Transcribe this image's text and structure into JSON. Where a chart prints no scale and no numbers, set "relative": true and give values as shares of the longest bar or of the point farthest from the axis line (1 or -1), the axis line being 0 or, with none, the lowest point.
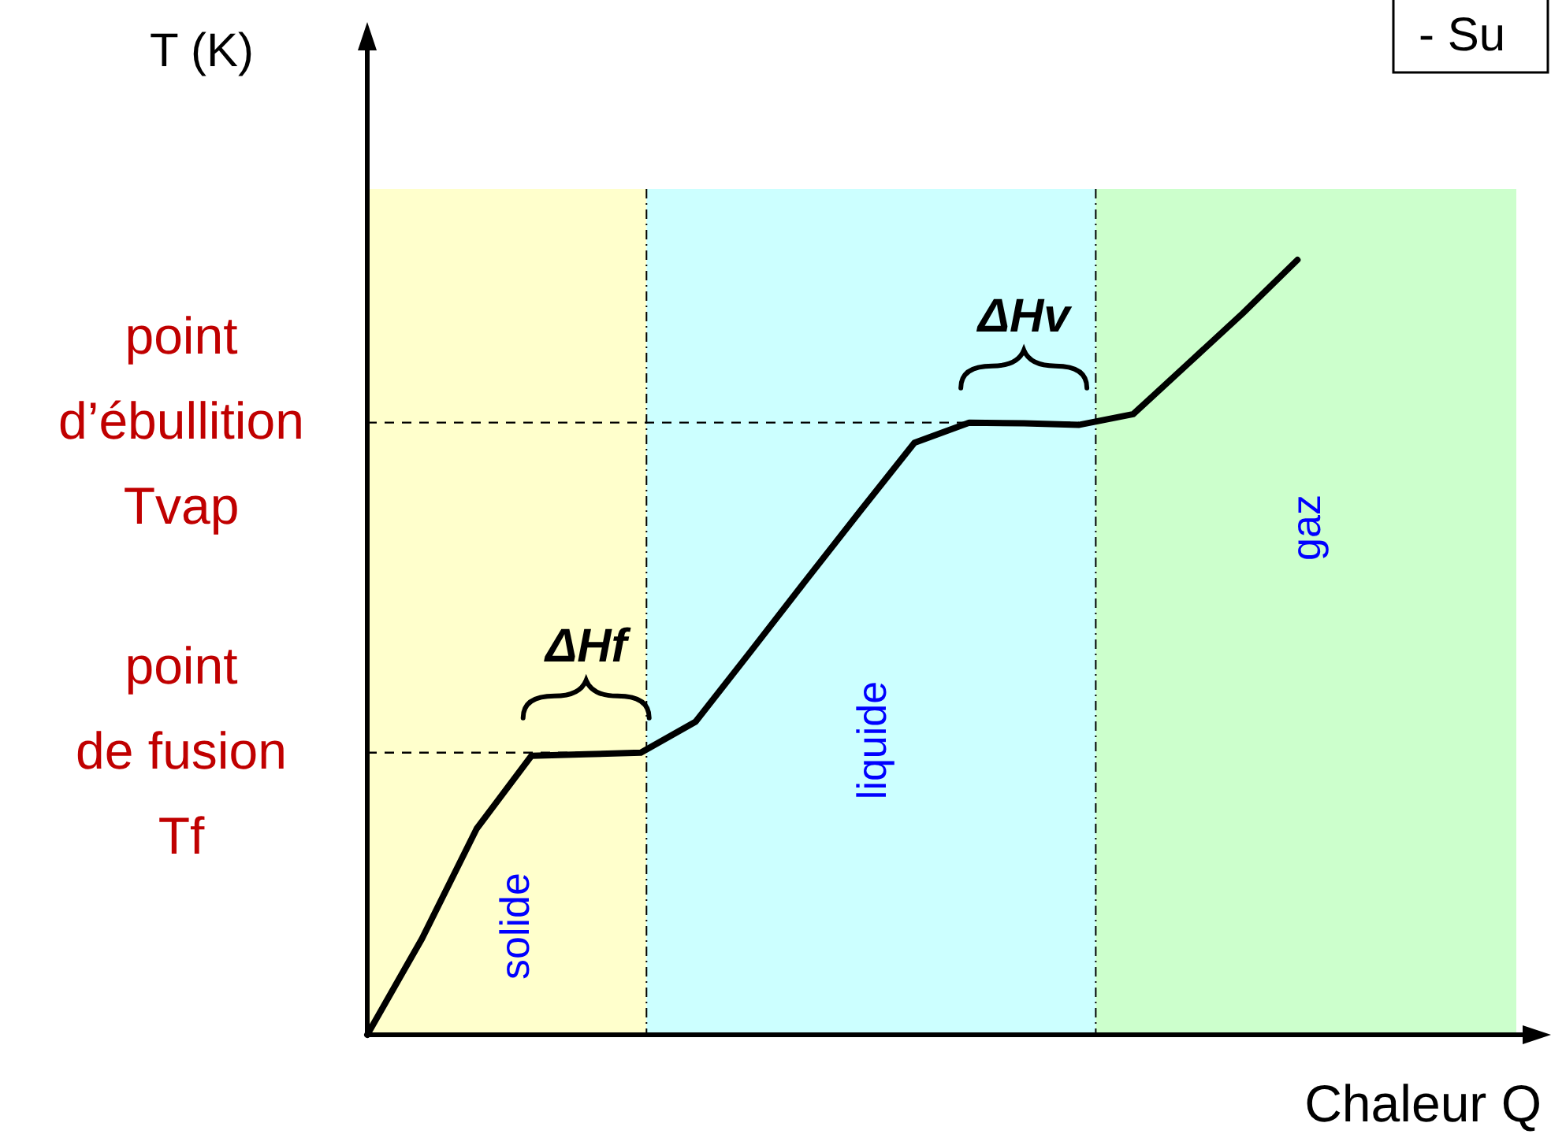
{
  "chart_data": {
    "type": "line",
    "relative": true,
    "xlabel": "Chaleur Q",
    "ylabel": "T (K)",
    "categories": [
      null,
      null,
      null,
      null,
      null,
      null,
      null,
      null,
      null,
      null,
      null,
      null,
      null,
      null,
      null,
      null,
      null,
      null,
      null,
      null,
      null,
      null
    ],
    "series": [
      {
        "color": "#000000",
        "values": [
          0,
          0.124,
          0.266,
          0.36,
          0.362,
          0.364,
          0.404,
          0.494,
          0.585,
          0.675,
          0.764,
          0.79,
          0.789,
          0.787,
          0.801,
          0.866,
          0.931,
          1,
          null,
          null,
          null,
          null
        ]
      }
    ],
    "ref_lines": [
      {
        "axis": "y",
        "value": 0.364,
        "label": "point\nde fusion\nTf",
        "line_style": "dashed"
      },
      {
        "axis": "y",
        "value": 0.79,
        "label": "point\nd’ébullition\nTvap",
        "line_style": "dashed"
      }
    ],
    "annotations": [
      {
        "text": "ΔHf",
        "y": 0.364
      },
      {
        "text": "ΔHv",
        "y": 0.79
      },
      {
        "text": "solide"
      },
      {
        "text": "liquide"
      },
      {
        "text": "gaz"
      },
      "- Su"
    ]
  }
}
